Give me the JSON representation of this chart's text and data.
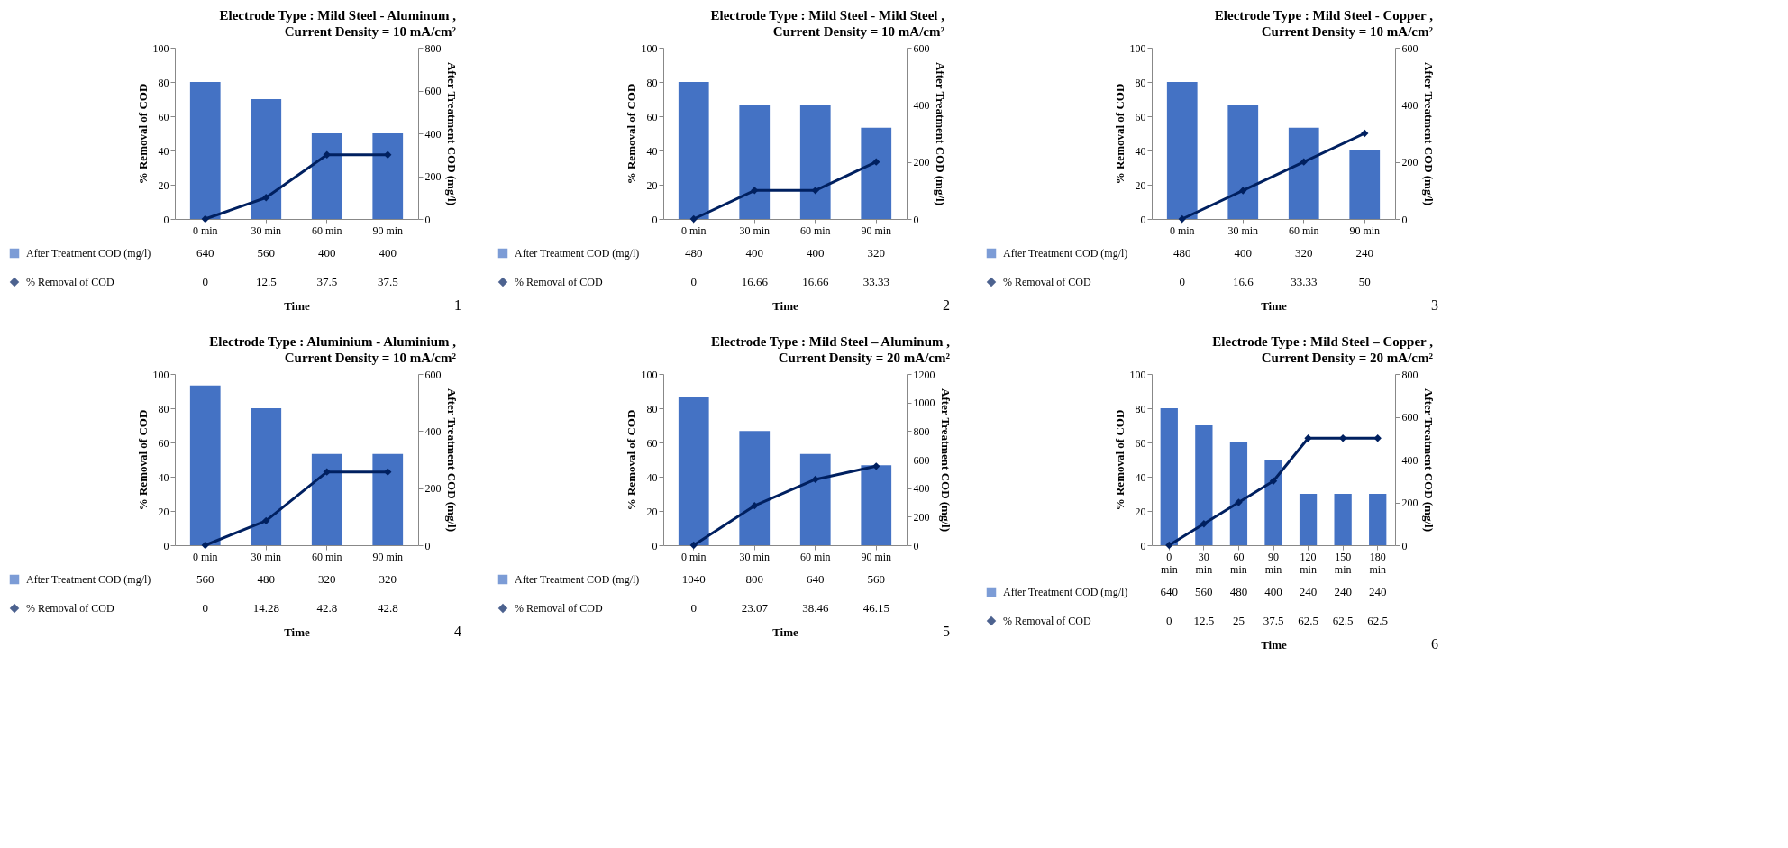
{
  "chart_data": [
    {
      "type": "bar",
      "title": "Electrode Type : Mild Steel - Aluminum ,",
      "subtitle": "Current Density = 10 mA/cm²",
      "xlabel": "Time",
      "ylabel": "% Removal of COD",
      "y2label": "After Treatment COD (mg/l)",
      "categories": [
        "0 min",
        "30 min",
        "60 min",
        "90 min"
      ],
      "ylim": [
        0,
        100
      ],
      "yticks": [
        0,
        20,
        40,
        60,
        80,
        100
      ],
      "y2lim": [
        0,
        800
      ],
      "y2ticks": [
        0,
        200,
        400,
        600,
        800
      ],
      "marker": "diamond",
      "legend": "bottom",
      "data_labels": true,
      "annotations": [
        "1"
      ],
      "series": [
        {
          "name": "After Treatment COD (mg/l)",
          "axis": "y2",
          "color": "#4472c4",
          "values": [
            640,
            560,
            400,
            400
          ]
        },
        {
          "name": "% Removal of COD",
          "type": "line",
          "color": "#002060",
          "values": [
            0,
            12.5,
            37.5,
            37.5
          ]
        }
      ]
    },
    {
      "type": "bar",
      "title": "Electrode Type : Mild Steel - Mild Steel ,",
      "subtitle": "Current Density = 10 mA/cm²",
      "xlabel": "Time",
      "ylabel": "% Removal of COD",
      "y2label": "After Treatment COD (mg/l)",
      "categories": [
        "0 min",
        "30 min",
        "60 min",
        "90 min"
      ],
      "ylim": [
        0,
        100
      ],
      "yticks": [
        0,
        20,
        40,
        60,
        80,
        100
      ],
      "y2lim": [
        0,
        600
      ],
      "y2ticks": [
        0,
        200,
        400,
        600
      ],
      "marker": "diamond",
      "legend": "bottom",
      "data_labels": true,
      "annotations": [
        "2"
      ],
      "series": [
        {
          "name": "After Treatment COD (mg/l)",
          "axis": "y2",
          "color": "#4472c4",
          "values": [
            480,
            400,
            400,
            320
          ]
        },
        {
          "name": "% Removal of COD",
          "type": "line",
          "color": "#002060",
          "values": [
            0,
            16.66,
            16.66,
            33.33
          ]
        }
      ]
    },
    {
      "type": "bar",
      "title": "Electrode Type : Mild Steel - Copper ,",
      "subtitle": "Current Density = 10 mA/cm²",
      "xlabel": "Time",
      "ylabel": "% Removal of COD",
      "y2label": "After Treatment COD (mg/l)",
      "categories": [
        "0 min",
        "30 min",
        "60 min",
        "90 min"
      ],
      "ylim": [
        0,
        100
      ],
      "yticks": [
        0,
        20,
        40,
        60,
        80,
        100
      ],
      "y2lim": [
        0,
        600
      ],
      "y2ticks": [
        0,
        200,
        400,
        600
      ],
      "marker": "diamond",
      "legend": "bottom",
      "data_labels": true,
      "annotations": [
        "3"
      ],
      "series": [
        {
          "name": "After Treatment COD (mg/l)",
          "axis": "y2",
          "color": "#4472c4",
          "values": [
            480,
            400,
            320,
            240
          ]
        },
        {
          "name": "% Removal of COD",
          "type": "line",
          "color": "#002060",
          "values": [
            0,
            16.6,
            33.33,
            50
          ]
        }
      ]
    },
    {
      "type": "bar",
      "title": "Electrode Type : Aluminium - Aluminium ,",
      "subtitle": "Current Density = 10 mA/cm²",
      "xlabel": "Time",
      "ylabel": "% Removal of COD",
      "y2label": "After Treatment COD (mg/l)",
      "categories": [
        "0 min",
        "30 min",
        "60 min",
        "90 min"
      ],
      "ylim": [
        0,
        100
      ],
      "yticks": [
        0,
        20,
        40,
        60,
        80,
        100
      ],
      "y2lim": [
        0,
        600
      ],
      "y2ticks": [
        0,
        200,
        400,
        600
      ],
      "marker": "diamond",
      "legend": "bottom",
      "data_labels": true,
      "annotations": [
        "4"
      ],
      "series": [
        {
          "name": "After Treatment COD (mg/l)",
          "axis": "y2",
          "color": "#4472c4",
          "values": [
            560,
            480,
            320,
            320
          ]
        },
        {
          "name": "% Removal of COD",
          "type": "line",
          "color": "#002060",
          "values": [
            0,
            14.28,
            42.8,
            42.8
          ]
        }
      ]
    },
    {
      "type": "bar",
      "title": "Electrode Type : Mild Steel – Aluminum ,",
      "subtitle": "Current Density = 20 mA/cm²",
      "xlabel": "Time",
      "ylabel": "% Removal of COD",
      "y2label": "After Treatment COD (mg/l)",
      "categories": [
        "0 min",
        "30 min",
        "60 min",
        "90 min"
      ],
      "ylim": [
        0,
        100
      ],
      "yticks": [
        0,
        20,
        40,
        60,
        80,
        100
      ],
      "y2lim": [
        0,
        1200
      ],
      "y2ticks": [
        0,
        200,
        400,
        600,
        800,
        1000,
        1200
      ],
      "marker": "diamond",
      "legend": "bottom",
      "data_labels": true,
      "annotations": [
        "5"
      ],
      "series": [
        {
          "name": "After Treatment COD (mg/l)",
          "axis": "y2",
          "color": "#4472c4",
          "values": [
            1040,
            800,
            640,
            560
          ]
        },
        {
          "name": "% Removal of COD",
          "type": "line",
          "color": "#002060",
          "values": [
            0,
            23.07,
            38.46,
            46.15
          ]
        }
      ]
    },
    {
      "type": "bar",
      "title": "Electrode Type : Mild Steel – Copper ,",
      "subtitle": "Current Density = 20 mA/cm²",
      "xlabel": "Time",
      "ylabel": "% Removal of COD",
      "y2label": "After Treatment COD (mg/l)",
      "categories": [
        "0 min",
        "30 min",
        "60 min",
        "90 min",
        "120 min",
        "150 min",
        "180 min"
      ],
      "ylim": [
        0,
        100
      ],
      "yticks": [
        0,
        20,
        40,
        60,
        80,
        100
      ],
      "y2lim": [
        0,
        800
      ],
      "y2ticks": [
        0,
        200,
        400,
        600,
        800
      ],
      "marker": "diamond",
      "legend": "bottom",
      "data_labels": true,
      "annotations": [
        "6"
      ],
      "series": [
        {
          "name": "After Treatment COD (mg/l)",
          "axis": "y2",
          "color": "#4472c4",
          "values": [
            640,
            560,
            480,
            400,
            240,
            240,
            240
          ]
        },
        {
          "name": "% Removal of COD",
          "type": "line",
          "color": "#002060",
          "values": [
            0,
            12.5,
            25,
            37.5,
            62.5,
            62.5,
            62.5
          ]
        }
      ]
    }
  ]
}
